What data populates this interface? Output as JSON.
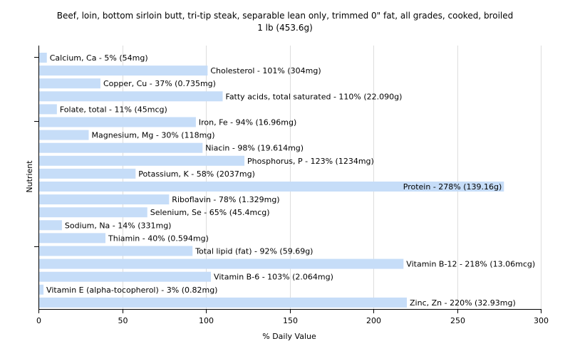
{
  "chart_data": {
    "type": "bar",
    "orientation": "horizontal",
    "title": [
      "Beef, loin, bottom sirloin butt, tri-tip steak, separable lean only, trimmed 0\" fat, all grades, cooked, broiled",
      "1 lb (453.6g)"
    ],
    "xlabel": "% Daily Value",
    "ylabel": "Nutrient",
    "xlim": [
      0,
      300
    ],
    "xticks": [
      0,
      50,
      100,
      150,
      200,
      250,
      300
    ],
    "grid": true,
    "bar_color": "#c6ddf8",
    "grid_color": "#dddddd",
    "categories": [
      "Calcium, Ca",
      "Cholesterol",
      "Copper, Cu",
      "Fatty acids, total saturated",
      "Folate, total",
      "Iron, Fe",
      "Magnesium, Mg",
      "Niacin",
      "Phosphorus, P",
      "Potassium, K",
      "Protein",
      "Riboflavin",
      "Selenium, Se",
      "Sodium, Na",
      "Thiamin",
      "Total lipid (fat)",
      "Vitamin B-12",
      "Vitamin B-6",
      "Vitamin E (alpha-tocopherol)",
      "Zinc, Zn"
    ],
    "values": [
      5,
      101,
      37,
      110,
      11,
      94,
      30,
      98,
      123,
      58,
      278,
      78,
      65,
      14,
      40,
      92,
      218,
      103,
      3,
      220
    ],
    "labels": [
      "Calcium, Ca - 5% (54mg)",
      "Cholesterol - 101% (304mg)",
      "Copper, Cu - 37% (0.735mg)",
      "Fatty acids, total saturated - 110% (22.090g)",
      "Folate, total - 11% (45mcg)",
      "Iron, Fe - 94% (16.96mg)",
      "Magnesium, Mg - 30% (118mg)",
      "Niacin - 98% (19.614mg)",
      "Phosphorus, P - 123% (1234mg)",
      "Potassium, K - 58% (2037mg)",
      "Protein - 278% (139.16g)",
      "Riboflavin - 78% (1.329mg)",
      "Selenium, Se - 65% (45.4mcg)",
      "Sodium, Na - 14% (331mg)",
      "Thiamin - 40% (0.594mg)",
      "Total lipid (fat) - 92% (59.69g)",
      "Vitamin B-12 - 218% (13.06mcg)",
      "Vitamin B-6 - 103% (2.064mg)",
      "Vitamin E (alpha-tocopherol) - 3% (0.82mg)",
      "Zinc, Zn - 220% (32.93mg)"
    ]
  }
}
